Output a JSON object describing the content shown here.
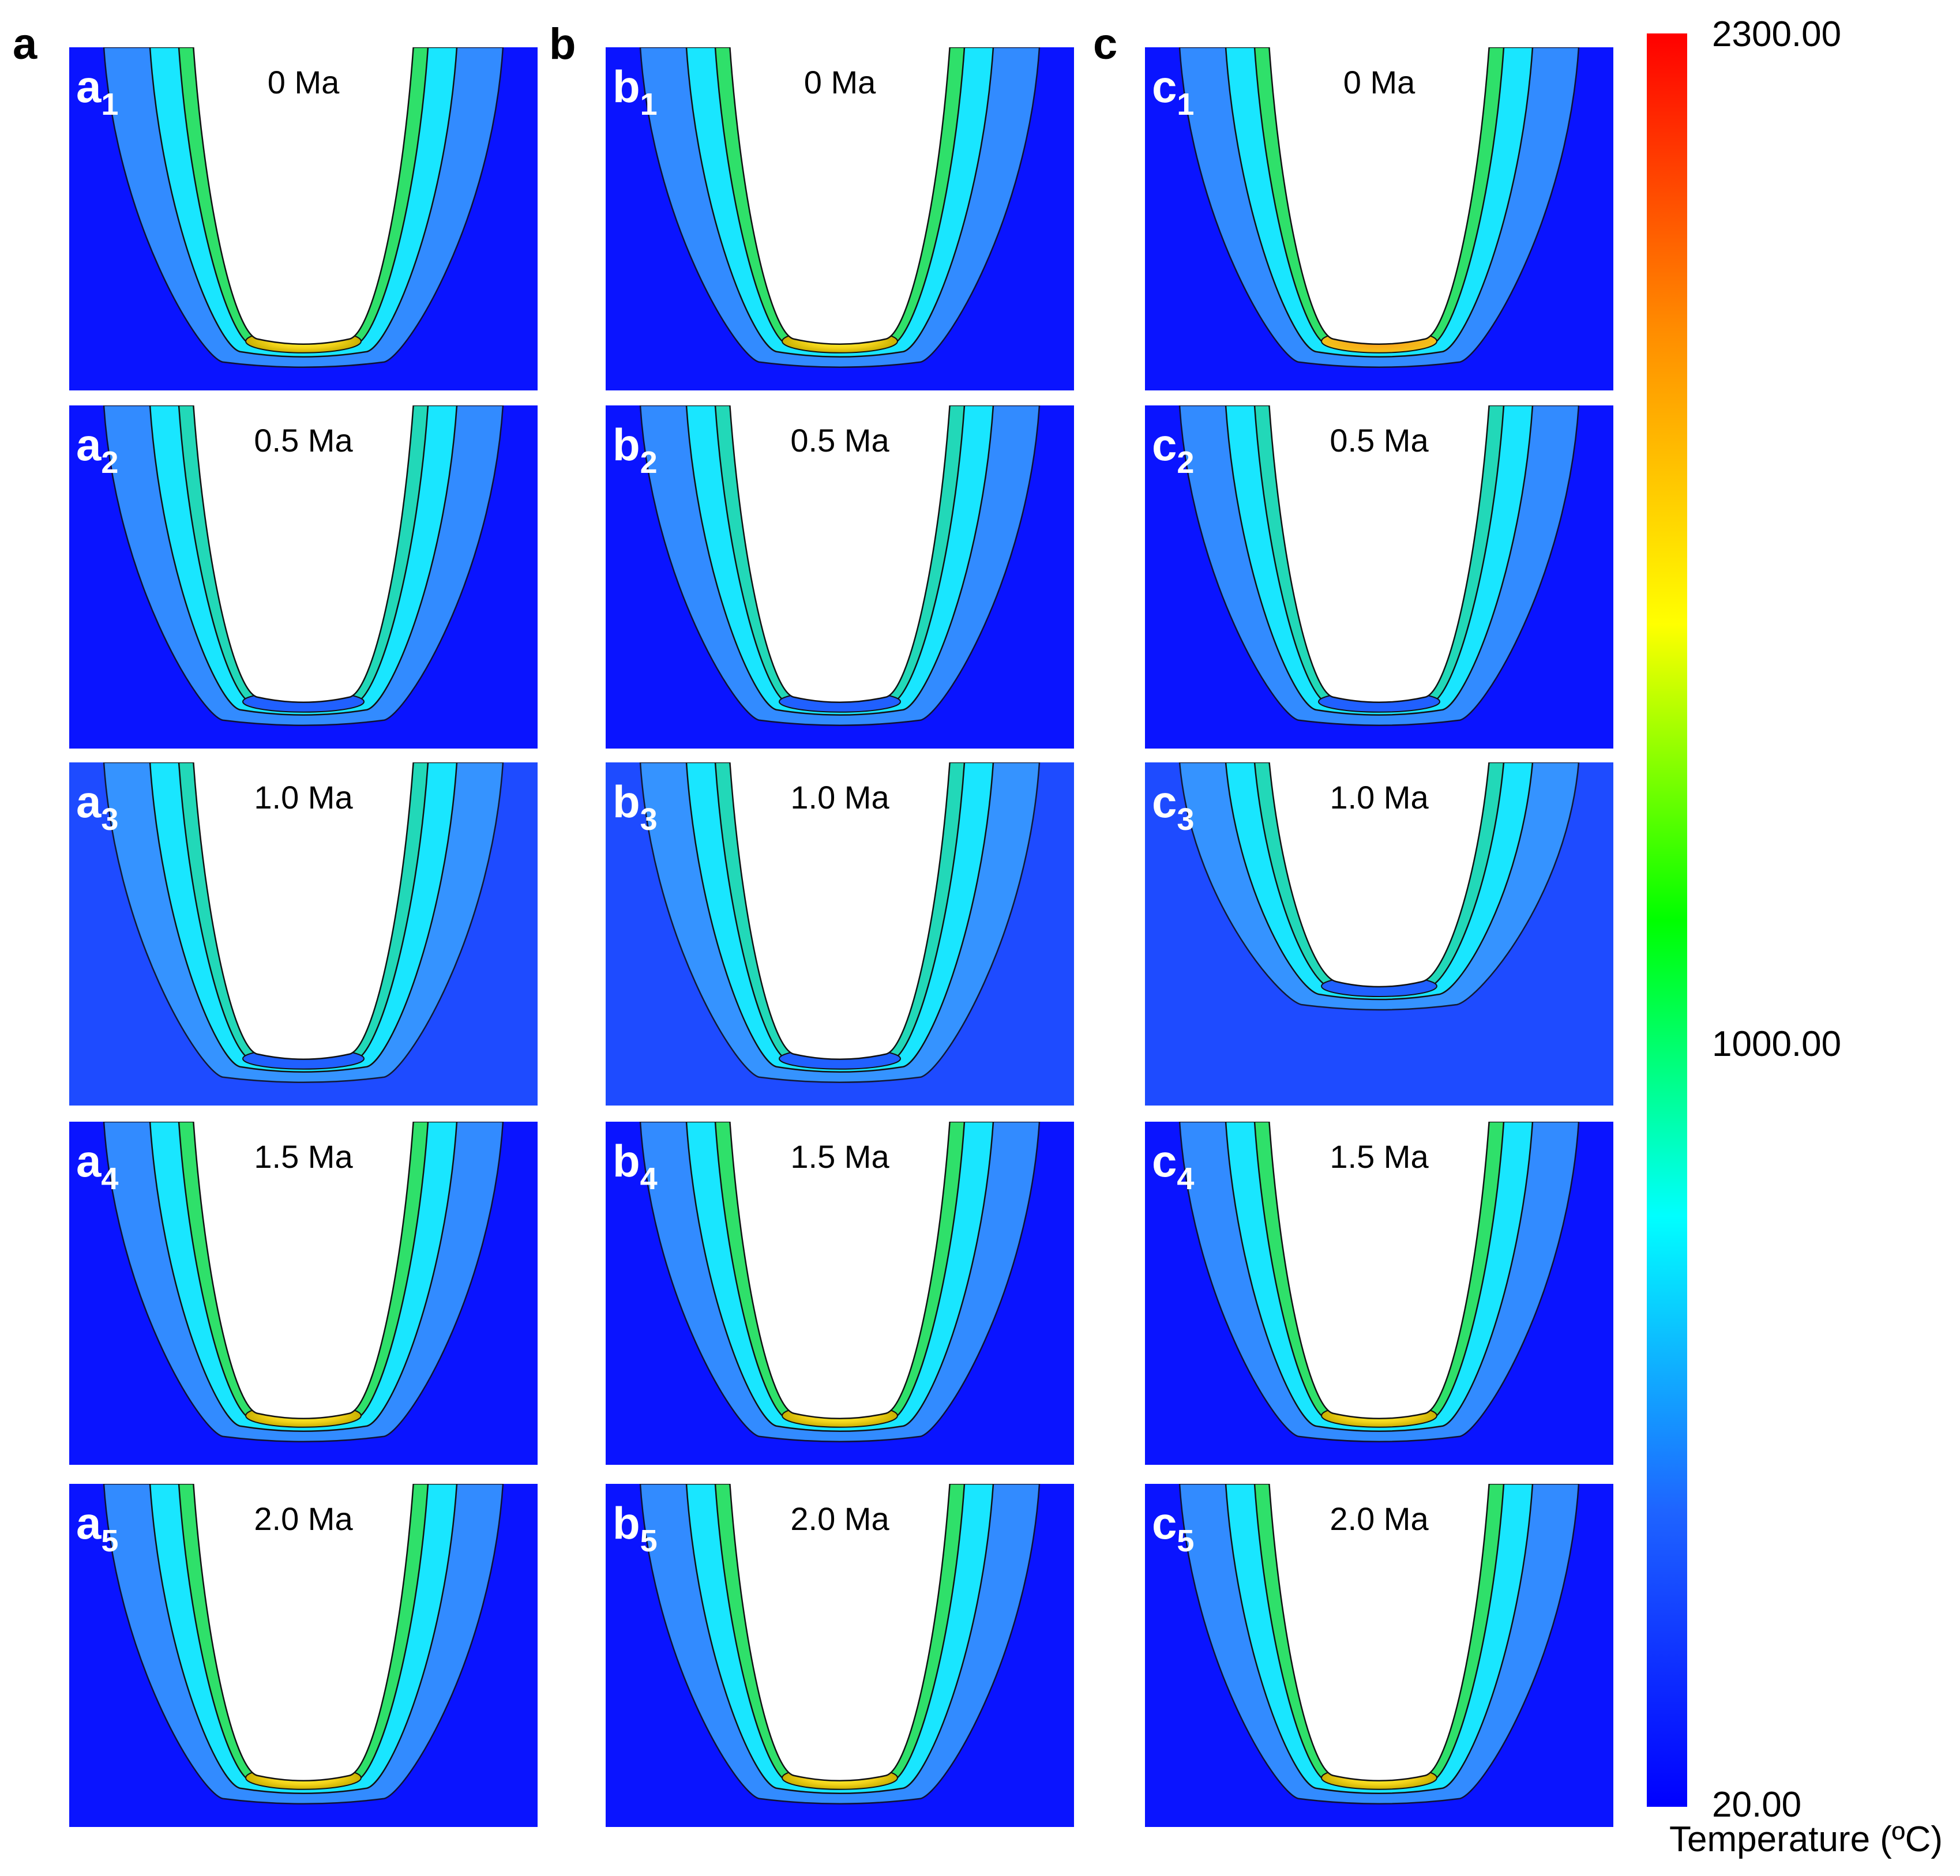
{
  "figure": {
    "columns": [
      {
        "letter": "a",
        "panels": [
          {
            "prefix": "a",
            "index": "1",
            "time": "0 Ma"
          },
          {
            "prefix": "a",
            "index": "2",
            "time": "0.5 Ma"
          },
          {
            "prefix": "a",
            "index": "3",
            "time": "1.0 Ma"
          },
          {
            "prefix": "a",
            "index": "4",
            "time": "1.5 Ma"
          },
          {
            "prefix": "a",
            "index": "5",
            "time": "2.0 Ma"
          }
        ]
      },
      {
        "letter": "b",
        "panels": [
          {
            "prefix": "b",
            "index": "1",
            "time": "0 Ma"
          },
          {
            "prefix": "b",
            "index": "2",
            "time": "0.5 Ma"
          },
          {
            "prefix": "b",
            "index": "3",
            "time": "1.0 Ma"
          },
          {
            "prefix": "b",
            "index": "4",
            "time": "1.5 Ma"
          },
          {
            "prefix": "b",
            "index": "5",
            "time": "2.0 Ma"
          }
        ]
      },
      {
        "letter": "c",
        "panels": [
          {
            "prefix": "c",
            "index": "1",
            "time": "0 Ma"
          },
          {
            "prefix": "c",
            "index": "2",
            "time": "0.5 Ma"
          },
          {
            "prefix": "c",
            "index": "3",
            "time": "1.0 Ma"
          },
          {
            "prefix": "c",
            "index": "4",
            "time": "1.5 Ma"
          },
          {
            "prefix": "c",
            "index": "5",
            "time": "2.0 Ma"
          }
        ]
      }
    ]
  },
  "colorbar": {
    "max_label": "2300.00",
    "mid_label": "1000.00",
    "min_label": "20.00",
    "title": "Temperature (ºC)",
    "max": 2300,
    "mid": 1000,
    "min": 20,
    "colors": [
      "#0000ff",
      "#1e64ff",
      "#00ffff",
      "#00ff00",
      "#ffff00",
      "#ff8c00",
      "#ff0000"
    ]
  }
}
